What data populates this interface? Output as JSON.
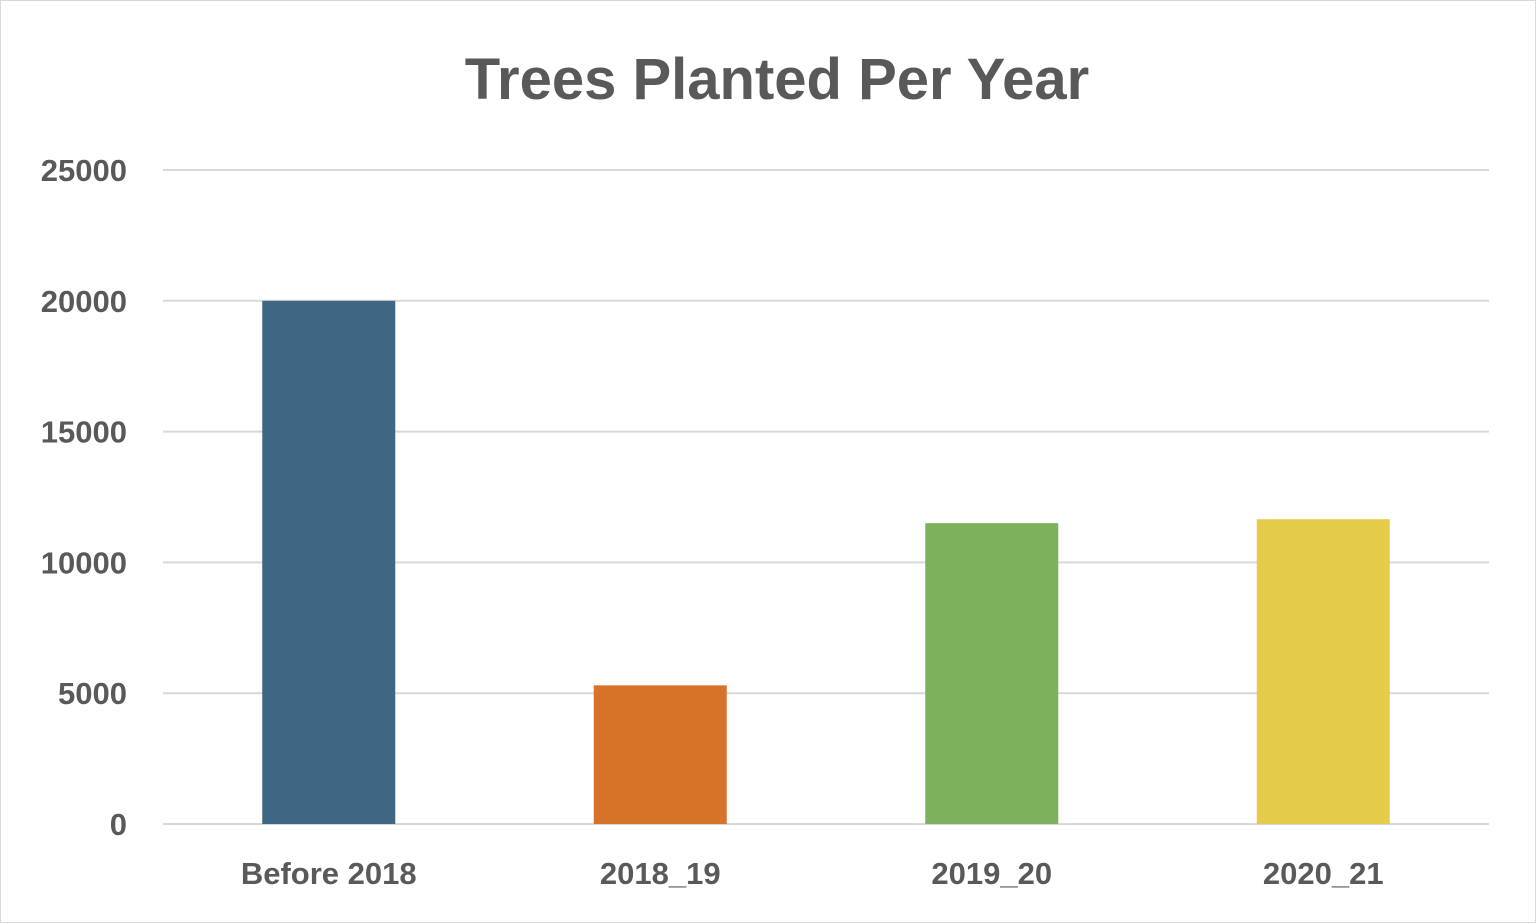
{
  "chart_data": {
    "type": "bar",
    "title": "Trees Planted Per Year",
    "xlabel": "",
    "ylabel": "",
    "categories": [
      "Before 2018",
      "2018_19",
      "2019_20",
      "2020_21"
    ],
    "values": [
      20000,
      5300,
      11500,
      11650
    ],
    "colors": [
      "#3f6682",
      "#d8722b",
      "#7db25a",
      "#e4cb4a"
    ],
    "ylim": [
      0,
      25000
    ],
    "yticks": [
      "0",
      "5000",
      "10000",
      "15000",
      "20000",
      "25000"
    ],
    "grid": true,
    "legend": "none"
  }
}
